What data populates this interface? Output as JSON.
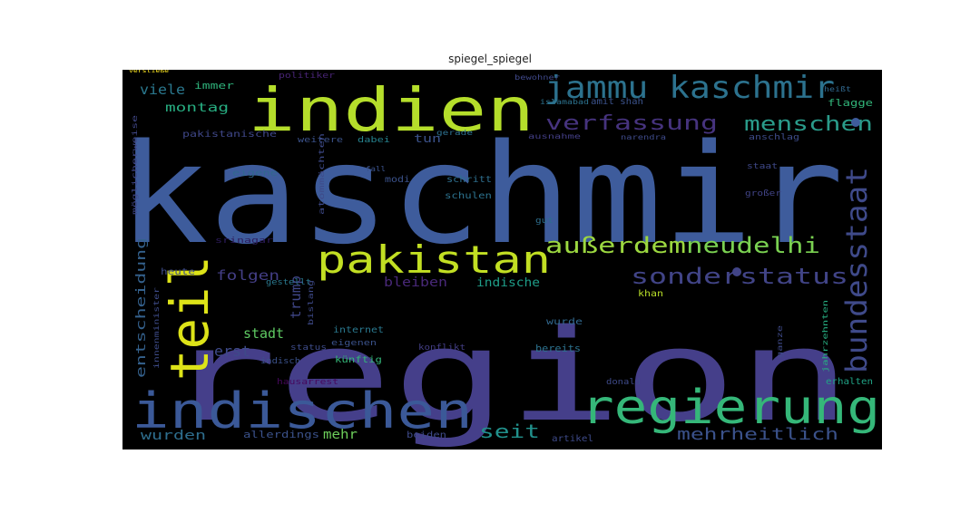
{
  "figure": {
    "title": "spiegel_spiegel",
    "background": "#ffffff",
    "panel_background": "#000000"
  },
  "chart_data": {
    "type": "wordcloud",
    "title": "spiegel_spiegel",
    "colormap": "viridis",
    "words": [
      {
        "text": "kaschmir",
        "weight": 100,
        "color": "#3e5c9c"
      },
      {
        "text": "region",
        "weight": 96,
        "color": "#453f8a"
      },
      {
        "text": "indien",
        "weight": 60,
        "color": "#b5de2b"
      },
      {
        "text": "indischen",
        "weight": 50,
        "color": "#3b5998"
      },
      {
        "text": "regierung",
        "weight": 48,
        "color": "#35b779"
      },
      {
        "text": "teil",
        "weight": 46,
        "color": "#dde318"
      },
      {
        "text": "pakistan",
        "weight": 38,
        "color": "#c2df23"
      },
      {
        "text": "jammu kaschmir",
        "weight": 32,
        "color": "#2c728e"
      },
      {
        "text": "bundesstaat",
        "weight": 30,
        "color": "#3f4a8a"
      },
      {
        "text": "außerdem",
        "weight": 24,
        "color": "#9cd840"
      },
      {
        "text": "neudelhi",
        "weight": 24,
        "color": "#7ad151"
      },
      {
        "text": "sonderstatus",
        "weight": 24,
        "color": "#414487"
      },
      {
        "text": "verfassung",
        "weight": 22,
        "color": "#46337e"
      },
      {
        "text": "menschen",
        "weight": 20,
        "color": "#2a9b8a"
      },
      {
        "text": "seit",
        "weight": 19,
        "color": "#21918c"
      },
      {
        "text": "mehrheitlich",
        "weight": 17,
        "color": "#3b528b"
      },
      {
        "text": "folgen",
        "weight": 14,
        "color": "#433e85"
      },
      {
        "text": "bleiben",
        "weight": 13,
        "color": "#482878"
      },
      {
        "text": "trump",
        "weight": 13,
        "color": "#404788"
      },
      {
        "text": "indische",
        "weight": 12,
        "color": "#1f9e89"
      },
      {
        "text": "entscheidung",
        "weight": 13,
        "color": "#34618d"
      },
      {
        "text": "viele",
        "weight": 13,
        "color": "#2a788e"
      },
      {
        "text": "montag",
        "weight": 12,
        "color": "#27ad81"
      },
      {
        "text": "stadt",
        "weight": 13,
        "color": "#5ec962"
      },
      {
        "text": "erst",
        "weight": 14,
        "color": "#3e4a89"
      },
      {
        "text": "wurden",
        "weight": 12,
        "color": "#2e6e8e"
      },
      {
        "text": "mehr",
        "weight": 12,
        "color": "#6ccd5a"
      },
      {
        "text": "tun",
        "weight": 11,
        "color": "#3b528b"
      },
      {
        "text": "immer",
        "weight": 9,
        "color": "#2fb47c"
      },
      {
        "text": "politiker",
        "weight": 8,
        "color": "#482475"
      },
      {
        "text": "bewohner",
        "weight": 7,
        "color": "#3f4889"
      },
      {
        "text": "heißt",
        "weight": 7,
        "color": "#31688e"
      },
      {
        "text": "flagge",
        "weight": 8,
        "color": "#32b67a"
      },
      {
        "text": "islamabad",
        "weight": 7,
        "color": "#2c728e"
      },
      {
        "text": "amit shah",
        "weight": 8,
        "color": "#3b528b"
      },
      {
        "text": "pakistanische",
        "weight": 8,
        "color": "#3f4788"
      },
      {
        "text": "weitere",
        "weight": 7,
        "color": "#3b528b"
      },
      {
        "text": "dabei",
        "weight": 7,
        "color": "#26828e"
      },
      {
        "text": "gerade",
        "weight": 6,
        "color": "#2d708e"
      },
      {
        "text": "ausnahme",
        "weight": 6,
        "color": "#433e85"
      },
      {
        "text": "narendra",
        "weight": 6,
        "color": "#3e4a89"
      },
      {
        "text": "anschlag",
        "weight": 7,
        "color": "#3e4c8a"
      },
      {
        "text": "eigene",
        "weight": 8,
        "color": "#31688e"
      },
      {
        "text": "fall",
        "weight": 7,
        "color": "#3b528b"
      },
      {
        "text": "modi",
        "weight": 8,
        "color": "#3b528b"
      },
      {
        "text": "schritt",
        "weight": 8,
        "color": "#2e6f8e"
      },
      {
        "text": "schulen",
        "weight": 8,
        "color": "#2c728e"
      },
      {
        "text": "staat",
        "weight": 7,
        "color": "#3f4889"
      },
      {
        "text": "großer",
        "weight": 7,
        "color": "#414487"
      },
      {
        "text": "gut",
        "weight": 7,
        "color": "#2e6e8e"
      },
      {
        "text": "srinagar",
        "weight": 7,
        "color": "#2d1c5c"
      },
      {
        "text": "heute",
        "weight": 7,
        "color": "#3e4c8a"
      },
      {
        "text": "gestellt",
        "weight": 7,
        "color": "#2a788e"
      },
      {
        "text": "khan",
        "weight": 7,
        "color": "#b8de29"
      },
      {
        "text": "internet",
        "weight": 7,
        "color": "#2a788e"
      },
      {
        "text": "eigenen",
        "weight": 7,
        "color": "#3b528b"
      },
      {
        "text": "status",
        "weight": 7,
        "color": "#3e4c8a"
      },
      {
        "text": "indisch",
        "weight": 7,
        "color": "#3b528b"
      },
      {
        "text": "künftig",
        "weight": 7,
        "color": "#34b679"
      },
      {
        "text": "konflikt",
        "weight": 7,
        "color": "#433e85"
      },
      {
        "text": "bereits",
        "weight": 7,
        "color": "#2c728e"
      },
      {
        "text": "wurde",
        "weight": 7,
        "color": "#31688e"
      },
      {
        "text": "donald",
        "weight": 7,
        "color": "#3e4a89"
      },
      {
        "text": "erhalten",
        "weight": 7,
        "color": "#20a386"
      },
      {
        "text": "hausarrest",
        "weight": 7,
        "color": "#46085c"
      },
      {
        "text": "allerdings",
        "weight": 7,
        "color": "#3b528b"
      },
      {
        "text": "beiden",
        "weight": 7,
        "color": "#3e4a89"
      },
      {
        "text": "artikel",
        "weight": 7,
        "color": "#3e4a89"
      },
      {
        "text": "möglicherweise",
        "weight": 5,
        "color": "#404788"
      },
      {
        "text": "atommächten",
        "weight": 5,
        "color": "#3e4a89"
      },
      {
        "text": "jahrzehnten",
        "weight": 5,
        "color": "#27ad81"
      },
      {
        "text": "innenminister",
        "weight": 5,
        "color": "#3e4c8a"
      },
      {
        "text": "ganze",
        "weight": 5,
        "color": "#3e4a89"
      },
      {
        "text": "bislang",
        "weight": 5,
        "color": "#3e4a89"
      },
      {
        "text": "verstieße",
        "weight": 4,
        "color": "#fde725"
      }
    ]
  }
}
